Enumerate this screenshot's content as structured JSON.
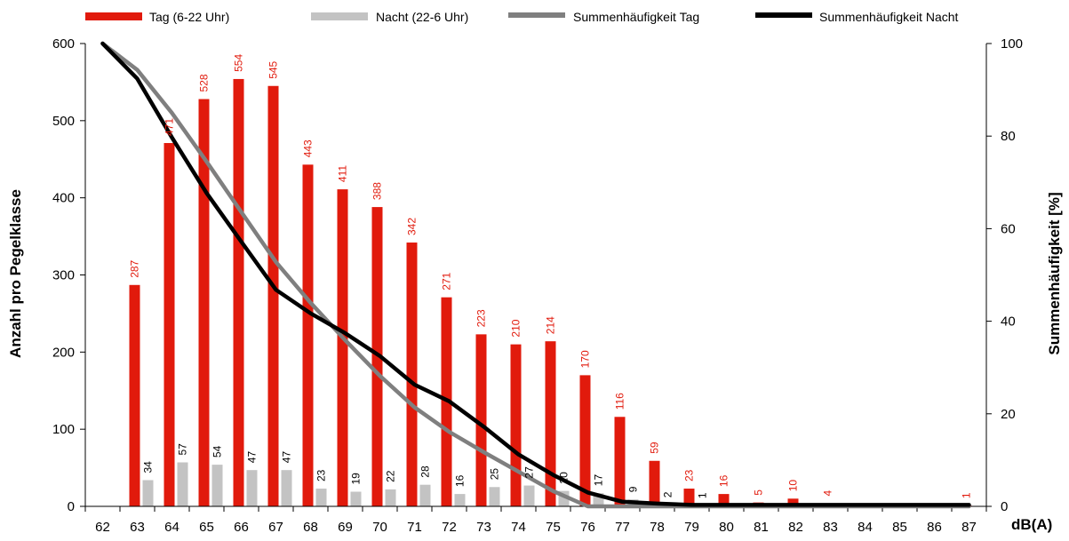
{
  "legend": {
    "day_bars": "Tag (6-22 Uhr)",
    "night_bars": "Nacht (22-6 Uhr)",
    "cum_day": "Summenhäufigkeit Tag",
    "cum_night": "Summenhäufigkeit Nacht"
  },
  "colors": {
    "day_bar": "#e11a0c",
    "night_bar": "#c3c3c3",
    "cum_day_line": "#7f7f7f",
    "cum_night_line": "#000000"
  },
  "chart_data": {
    "type": "bar",
    "title": "",
    "xlabel": "dB(A)",
    "ylabel": "Anzahl pro Pegelklasse",
    "y2label": "Summenhäufigkeit [%]",
    "ylim": [
      0,
      600
    ],
    "y2lim": [
      0,
      100
    ],
    "yticks": [
      0,
      100,
      200,
      300,
      400,
      500,
      600
    ],
    "y2ticks": [
      0,
      20,
      40,
      60,
      80,
      100
    ],
    "grid": false,
    "legend_position": "top",
    "categories": [
      "62",
      "63",
      "64",
      "65",
      "66",
      "67",
      "68",
      "69",
      "70",
      "71",
      "72",
      "73",
      "74",
      "75",
      "76",
      "77",
      "78",
      "79",
      "80",
      "81",
      "82",
      "83",
      "84",
      "85",
      "86",
      "87"
    ],
    "series": [
      {
        "name": "Tag (6-22 Uhr)",
        "kind": "bar",
        "values": [
          null,
          287,
          471,
          528,
          554,
          545,
          443,
          411,
          388,
          342,
          271,
          223,
          210,
          214,
          170,
          116,
          59,
          23,
          16,
          5,
          10,
          4,
          null,
          null,
          null,
          1
        ]
      },
      {
        "name": "Nacht (22-6 Uhr)",
        "kind": "bar",
        "values": [
          null,
          34,
          57,
          54,
          47,
          47,
          23,
          19,
          22,
          28,
          16,
          25,
          27,
          20,
          17,
          9,
          2,
          1,
          null,
          null,
          null,
          null,
          null,
          null,
          null,
          null
        ]
      },
      {
        "name": "Summenhäufigkeit Tag",
        "kind": "line",
        "axis": "right",
        "values": [
          100,
          94.3,
          85.0,
          74.5,
          63.6,
          52.8,
          44.0,
          35.9,
          28.2,
          21.4,
          16.1,
          11.7,
          7.5,
          3.3,
          0.0,
          -2.3,
          -3.4,
          -3.9,
          -4.2,
          -4.3,
          -4.5,
          -4.6,
          -4.6,
          -4.6,
          -4.6,
          -4.6
        ]
      },
      {
        "name": "Summenhäufigkeit Nacht",
        "kind": "line",
        "axis": "right",
        "values": [
          100,
          92.4,
          79.7,
          67.7,
          57.2,
          46.8,
          41.7,
          37.4,
          32.5,
          26.3,
          22.7,
          17.2,
          11.2,
          6.8,
          3.0,
          1.0,
          0.6,
          0.3,
          0.3,
          0.3,
          0.3,
          0.3,
          0.3,
          0.3,
          0.3,
          0.3
        ]
      }
    ]
  }
}
